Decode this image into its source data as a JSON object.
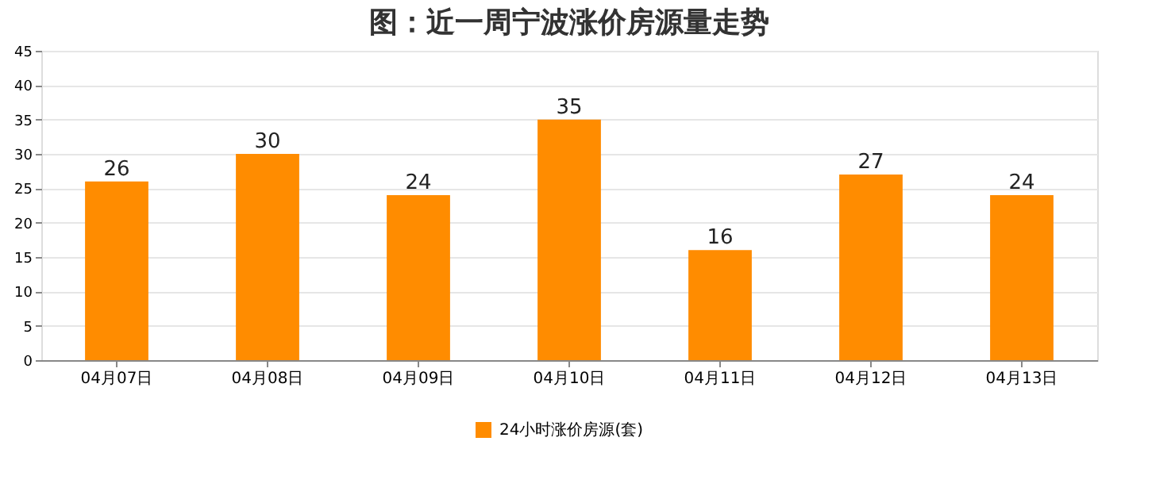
{
  "chart_data": {
    "type": "bar",
    "title": "图：近一周宁波涨价房源量走势",
    "categories": [
      "04月07日",
      "04月08日",
      "04月09日",
      "04月10日",
      "04月11日",
      "04月12日",
      "04月13日"
    ],
    "series": [
      {
        "name": "24小时涨价房源(套)",
        "color": "#ff8c00",
        "values": [
          26,
          30,
          24,
          35,
          16,
          27,
          24
        ]
      }
    ],
    "ylim": [
      0,
      45
    ],
    "yticks": [
      0,
      5,
      10,
      15,
      20,
      25,
      30,
      35,
      40,
      45
    ],
    "grid": "y",
    "legend": "bottom",
    "data_labels": true
  }
}
